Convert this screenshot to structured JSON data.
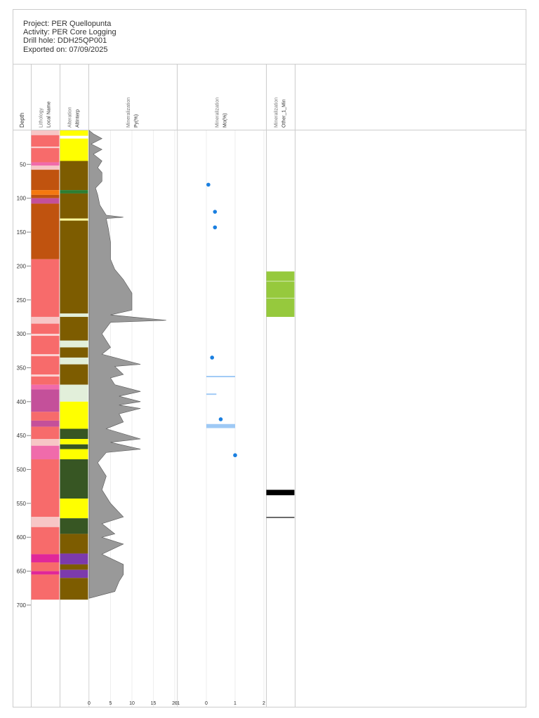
{
  "header": {
    "lines": [
      "Project: PER Quellopunta",
      "Activity: PER Core Logging",
      "Drill hole: DDH25QP001",
      "Exported on: 07/09/2025"
    ]
  },
  "depth_axis": {
    "label": "Depth",
    "ylim": [
      0,
      850
    ],
    "ticks": [
      50,
      100,
      150,
      200,
      250,
      300,
      350,
      400,
      450,
      500,
      550,
      600,
      650,
      700
    ]
  },
  "columns": [
    {
      "type": "intervals",
      "group": "Lithology",
      "name": "Local Name",
      "intervals": [
        {
          "from": 0,
          "to": 7,
          "color": "#f7c6c6"
        },
        {
          "from": 7,
          "to": 24,
          "color": "#f76b6b"
        },
        {
          "from": 24,
          "to": 26,
          "color": "#fbd0d0"
        },
        {
          "from": 26,
          "to": 47,
          "color": "#f76b6b"
        },
        {
          "from": 47,
          "to": 52,
          "color": "#f06bab"
        },
        {
          "from": 52,
          "to": 58,
          "color": "#f7c6c6"
        },
        {
          "from": 58,
          "to": 88,
          "color": "#c0530f"
        },
        {
          "from": 88,
          "to": 95,
          "color": "#f5780f"
        },
        {
          "from": 95,
          "to": 100,
          "color": "#c0530f"
        },
        {
          "from": 100,
          "to": 108,
          "color": "#c4509a"
        },
        {
          "from": 108,
          "to": 190,
          "color": "#c0530f"
        },
        {
          "from": 190,
          "to": 275,
          "color": "#f76b6b"
        },
        {
          "from": 275,
          "to": 285,
          "color": "#f7c6c6"
        },
        {
          "from": 285,
          "to": 300,
          "color": "#f76b6b"
        },
        {
          "from": 300,
          "to": 303,
          "color": "#fbd0d0"
        },
        {
          "from": 303,
          "to": 330,
          "color": "#f76b6b"
        },
        {
          "from": 330,
          "to": 333,
          "color": "#fbd0d0"
        },
        {
          "from": 333,
          "to": 360,
          "color": "#f76b6b"
        },
        {
          "from": 360,
          "to": 363,
          "color": "#fbd0d0"
        },
        {
          "from": 363,
          "to": 375,
          "color": "#f76b6b"
        },
        {
          "from": 375,
          "to": 382,
          "color": "#f06bab"
        },
        {
          "from": 382,
          "to": 415,
          "color": "#c4509a"
        },
        {
          "from": 415,
          "to": 428,
          "color": "#f76b6b"
        },
        {
          "from": 428,
          "to": 437,
          "color": "#c4509a"
        },
        {
          "from": 437,
          "to": 455,
          "color": "#f76b6b"
        },
        {
          "from": 455,
          "to": 465,
          "color": "#f7c6c6"
        },
        {
          "from": 465,
          "to": 485,
          "color": "#f06bab"
        },
        {
          "from": 485,
          "to": 570,
          "color": "#f76b6b"
        },
        {
          "from": 570,
          "to": 585,
          "color": "#f7c6c6"
        },
        {
          "from": 585,
          "to": 625,
          "color": "#f76b6b"
        },
        {
          "from": 625,
          "to": 637,
          "color": "#e0279a"
        },
        {
          "from": 637,
          "to": 650,
          "color": "#f76b6b"
        },
        {
          "from": 650,
          "to": 655,
          "color": "#e0279a"
        },
        {
          "from": 655,
          "to": 692,
          "color": "#f76b6b"
        }
      ]
    },
    {
      "type": "intervals",
      "group": "Alteration",
      "name": "AltInterp",
      "intervals": [
        {
          "from": 0,
          "to": 8,
          "color": "#ffff00"
        },
        {
          "from": 8,
          "to": 12,
          "color": "#ffffff"
        },
        {
          "from": 12,
          "to": 45,
          "color": "#ffff00"
        },
        {
          "from": 45,
          "to": 88,
          "color": "#7d5c00"
        },
        {
          "from": 88,
          "to": 93,
          "color": "#2e7d32"
        },
        {
          "from": 93,
          "to": 130,
          "color": "#7d5c00"
        },
        {
          "from": 130,
          "to": 133,
          "color": "#ffff99"
        },
        {
          "from": 133,
          "to": 270,
          "color": "#7d5c00"
        },
        {
          "from": 270,
          "to": 275,
          "color": "#e2efda"
        },
        {
          "from": 275,
          "to": 310,
          "color": "#7d5c00"
        },
        {
          "from": 310,
          "to": 320,
          "color": "#e2efda"
        },
        {
          "from": 320,
          "to": 335,
          "color": "#7d5c00"
        },
        {
          "from": 335,
          "to": 345,
          "color": "#e2efda"
        },
        {
          "from": 345,
          "to": 375,
          "color": "#7d5c00"
        },
        {
          "from": 375,
          "to": 400,
          "color": "#e2efda"
        },
        {
          "from": 400,
          "to": 440,
          "color": "#ffff00"
        },
        {
          "from": 440,
          "to": 455,
          "color": "#375623"
        },
        {
          "from": 455,
          "to": 463,
          "color": "#ffff00"
        },
        {
          "from": 463,
          "to": 470,
          "color": "#375623"
        },
        {
          "from": 470,
          "to": 485,
          "color": "#ffff00"
        },
        {
          "from": 485,
          "to": 543,
          "color": "#375623"
        },
        {
          "from": 543,
          "to": 572,
          "color": "#ffff00"
        },
        {
          "from": 572,
          "to": 595,
          "color": "#375623"
        },
        {
          "from": 595,
          "to": 624,
          "color": "#7d5c00"
        },
        {
          "from": 624,
          "to": 640,
          "color": "#7c3aad"
        },
        {
          "from": 640,
          "to": 648,
          "color": "#7d5c00"
        },
        {
          "from": 648,
          "to": 660,
          "color": "#7c3aad"
        },
        {
          "from": 660,
          "to": 692,
          "color": "#7d5c00"
        }
      ]
    },
    {
      "type": "area",
      "group": "Mineralization",
      "name": "Py(%)",
      "color": "#999999",
      "xlim": [
        0,
        20
      ],
      "xticks": [
        0,
        5,
        10,
        15,
        20
      ],
      "depths": [
        0,
        5,
        12,
        20,
        28,
        35,
        45,
        55,
        62,
        75,
        85,
        95,
        110,
        125,
        128,
        130,
        145,
        165,
        180,
        190,
        205,
        220,
        240,
        265,
        272,
        280,
        283,
        300,
        320,
        330,
        345,
        348,
        360,
        365,
        375,
        385,
        392,
        400,
        405,
        410,
        418,
        430,
        440,
        455,
        460,
        470,
        475,
        490,
        510,
        530,
        550,
        570,
        580,
        595,
        600,
        610,
        625,
        640,
        655,
        665,
        680,
        690
      ],
      "values": [
        0,
        1,
        3,
        0.5,
        3,
        1,
        3,
        2,
        3,
        3,
        1.5,
        2,
        2.5,
        4,
        8,
        4,
        4.5,
        5,
        5,
        5,
        6,
        8,
        10,
        10,
        5,
        18,
        5,
        3,
        5,
        3,
        12,
        6,
        8,
        5,
        6,
        12,
        7,
        12,
        7,
        12,
        7,
        8,
        4,
        12,
        5,
        12,
        4,
        2,
        4,
        3,
        5,
        8,
        3,
        6,
        3,
        8,
        3,
        8,
        8,
        7,
        6,
        0
      ]
    },
    {
      "type": "scatter",
      "group": "Mineralization",
      "name": "Mo(%)",
      "color": "#1a7fe0",
      "bar_color": "#9ec9f5",
      "xlim": [
        -1,
        2
      ],
      "xticks": [
        -1,
        0,
        1,
        2
      ],
      "depths": [
        80,
        120,
        143,
        335,
        426,
        479
      ],
      "values": [
        0.07,
        0.3,
        0.3,
        0.2,
        0.5,
        1.0
      ],
      "intervals": [
        {
          "from": 362,
          "to": 364,
          "value": 1
        },
        {
          "from": 388,
          "to": 390,
          "value": 0.35
        },
        {
          "from": 433,
          "to": 439,
          "value": 1
        }
      ]
    },
    {
      "type": "intervals",
      "group": "Mineralization",
      "name": "Other_1_Min",
      "intervals": [
        {
          "from": 208,
          "to": 222,
          "color": "#96c93d"
        },
        {
          "from": 222,
          "to": 223,
          "color": "#c5e39a"
        },
        {
          "from": 223,
          "to": 247,
          "color": "#96c93d"
        },
        {
          "from": 247,
          "to": 248,
          "color": "#c5e39a"
        },
        {
          "from": 248,
          "to": 275,
          "color": "#96c93d"
        },
        {
          "from": 530,
          "to": 538,
          "color": "#000000"
        },
        {
          "from": 570,
          "to": 571.5,
          "color": "#333333"
        }
      ]
    }
  ]
}
